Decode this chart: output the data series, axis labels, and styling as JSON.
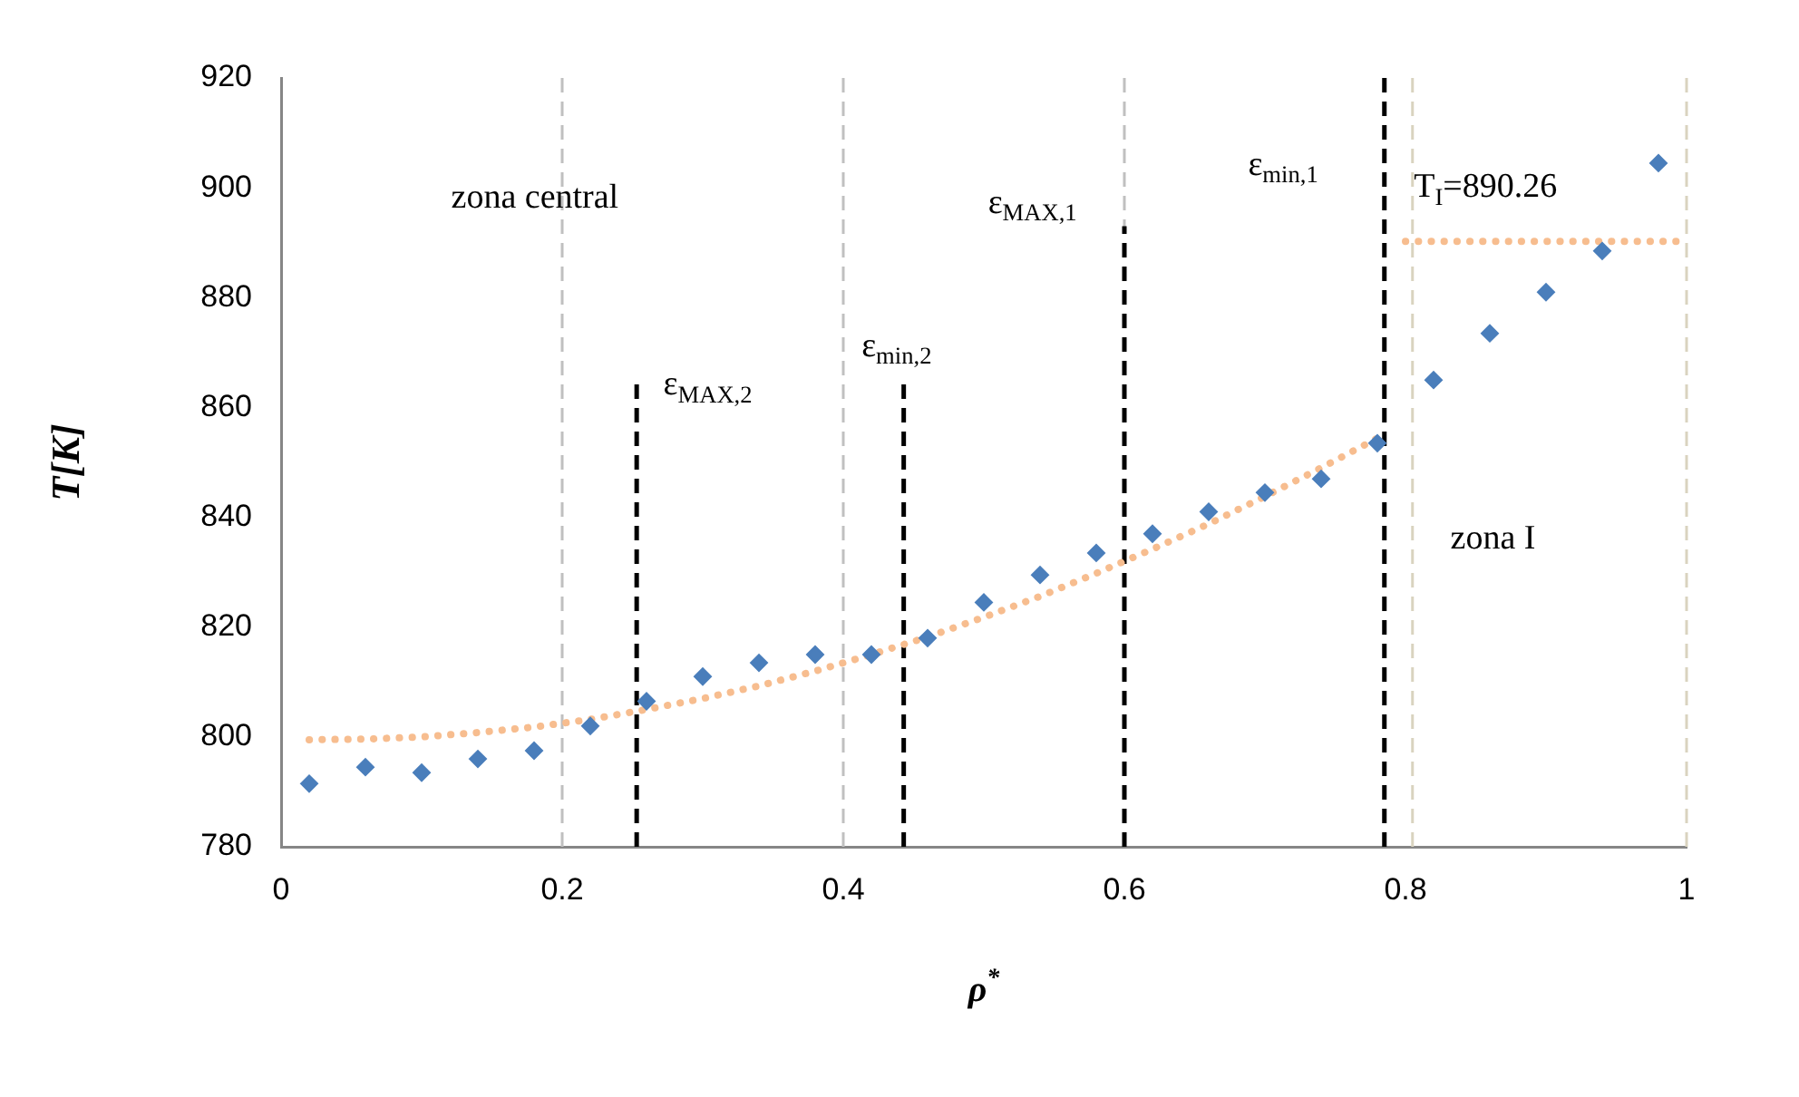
{
  "chart_data": {
    "type": "scatter",
    "xlabel": "ρ$^{*}$",
    "ylabel": "T[K]",
    "xlim": [
      0,
      1
    ],
    "xticks": [
      0,
      0.2,
      0.4,
      0.6,
      0.8,
      1
    ],
    "ylim": [
      780,
      920
    ],
    "yticks": [
      780,
      800,
      820,
      840,
      860,
      880,
      900,
      920
    ],
    "grid": false,
    "legend": false,
    "marker": "diamond",
    "series": [
      {
        "color": "#4a7ebb",
        "x": [
          0.02,
          0.06,
          0.1,
          0.14,
          0.18,
          0.22,
          0.26,
          0.3,
          0.34,
          0.38,
          0.42,
          0.46,
          0.5,
          0.54,
          0.58,
          0.62,
          0.66,
          0.7,
          0.74,
          0.78,
          0.82,
          0.86,
          0.9,
          0.94,
          0.98
        ],
        "values": [
          791.5,
          794.5,
          793.5,
          796,
          797.5,
          802,
          806.5,
          811,
          813.5,
          815,
          815,
          818,
          824.5,
          829.5,
          833.5,
          837,
          841,
          844.5,
          847,
          853.5,
          865,
          873.5,
          881,
          888.5,
          904.5
        ]
      },
      {
        "type": "line",
        "color": "#f7bd8f",
        "line_style": "dotted",
        "marker": "none",
        "x": [
          0.02,
          0.06,
          0.1,
          0.14,
          0.18,
          0.22,
          0.26,
          0.3,
          0.34,
          0.38,
          0.42,
          0.46,
          0.5,
          0.54,
          0.58,
          0.62,
          0.66,
          0.7,
          0.74,
          0.78
        ],
        "values": [
          799.5,
          799.6,
          800,
          800.8,
          801.8,
          803.2,
          805,
          807,
          809.3,
          812,
          815,
          818.2,
          821.8,
          825.6,
          829.8,
          834.2,
          838.8,
          843.8,
          849,
          854.4
        ]
      },
      {
        "type": "line",
        "color": "#f7bd8f",
        "line_style": "dotted",
        "marker": "none",
        "x": [
          0.8,
          1
        ],
        "values": [
          890.26,
          890.26
        ]
      },
      {
        "type": "line",
        "color": "#000000",
        "line_style": "dashed",
        "marker": "none",
        "x": [
          0.253,
          0.253
        ],
        "values": [
          780,
          865
        ]
      },
      {
        "type": "line",
        "color": "#000000",
        "line_style": "dashed",
        "marker": "none",
        "x": [
          0.443,
          0.443
        ],
        "values": [
          780,
          865
        ]
      },
      {
        "type": "line",
        "color": "#000000",
        "line_style": "dashed",
        "marker": "none",
        "x": [
          0.6,
          0.6
        ],
        "values": [
          780,
          893
        ]
      }
    ],
    "ref_lines": [
      {
        "axis": "x",
        "value": 0.2,
        "color": "#c0c0c0",
        "line_style": "dashed"
      },
      {
        "axis": "x",
        "value": 0.4,
        "color": "#c0c0c0",
        "line_style": "dashed"
      },
      {
        "axis": "x",
        "value": 0.6,
        "color": "#c0c0c0",
        "line_style": "dashed"
      },
      {
        "axis": "x",
        "value": 0.785,
        "color": "#000000",
        "line_style": "dashed"
      },
      {
        "axis": "x",
        "value": 0.805,
        "color": "#d9d3bf",
        "line_style": "dashed"
      },
      {
        "axis": "x",
        "value": 1,
        "color": "#d9d3bf",
        "line_style": "dashed"
      }
    ],
    "annotations": [
      "zona central",
      "zona I",
      "ε$_{MAX,2}$",
      "ε$_{min,2}$",
      "ε$_{MAX,1}$",
      "ε$_{min,1}$",
      {
        "text": "T$_{I}$=890.26",
        "x": 0.806,
        "y": 900
      }
    ]
  }
}
